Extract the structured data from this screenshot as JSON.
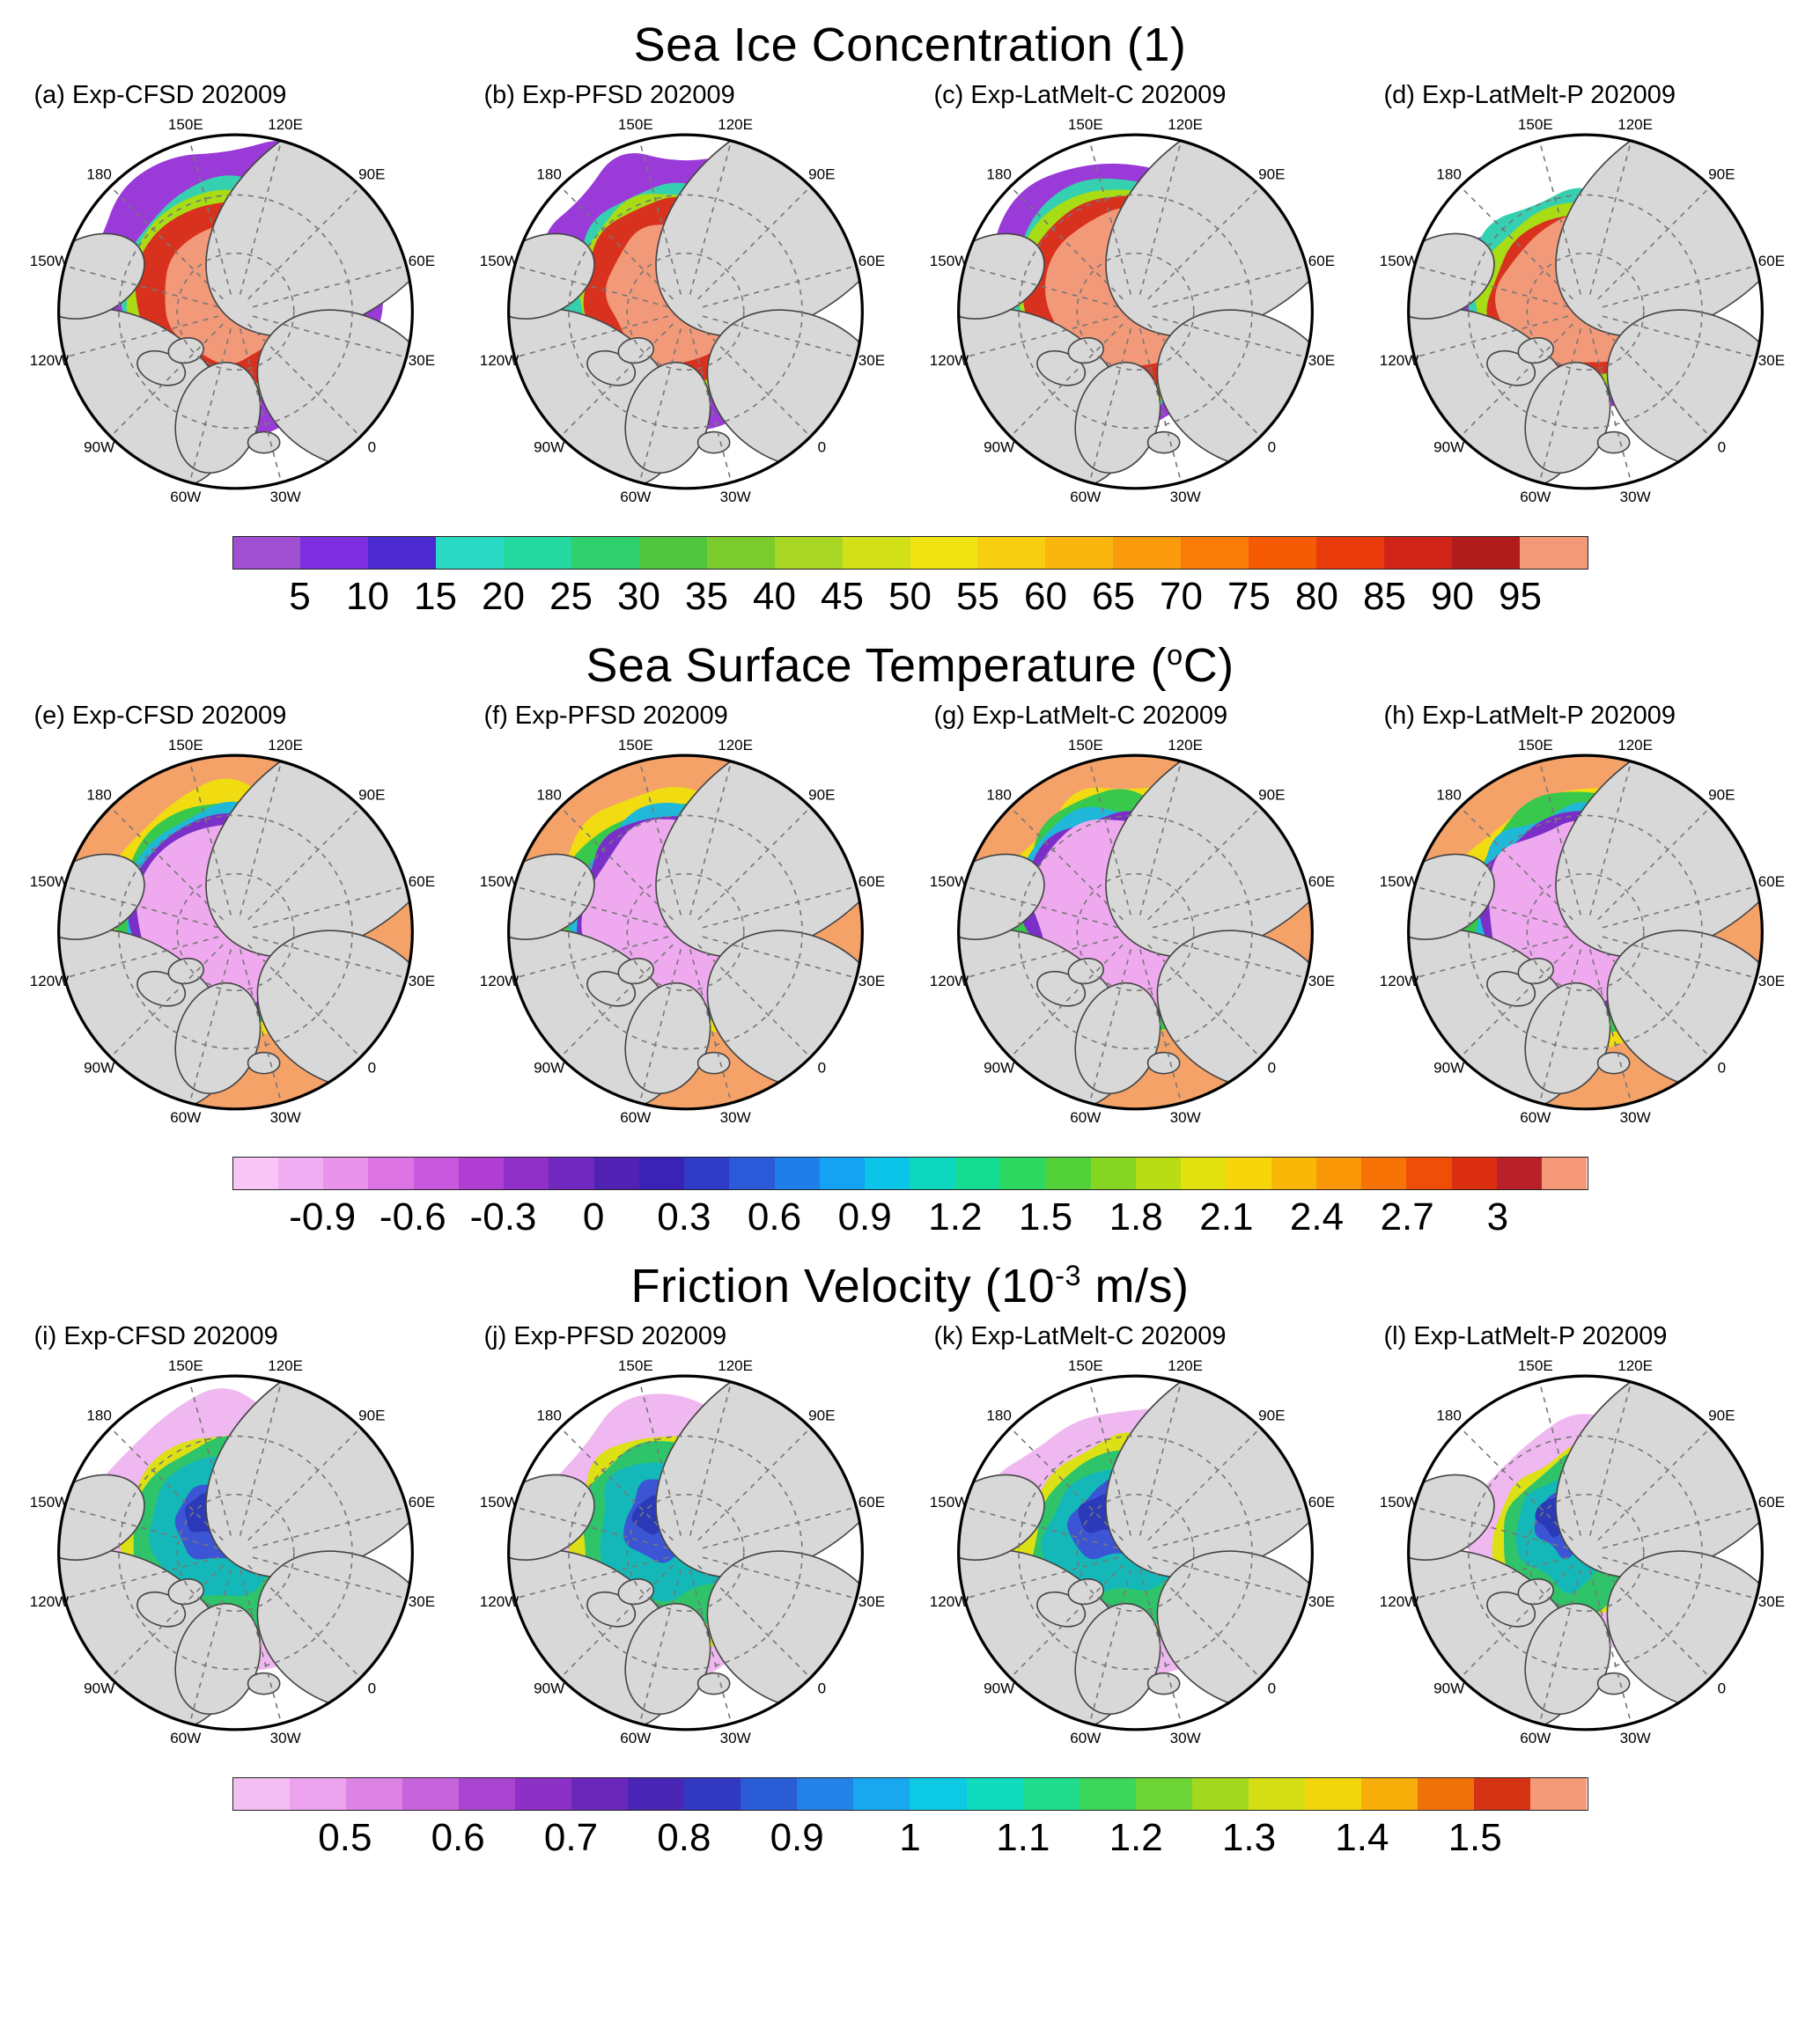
{
  "figure": {
    "background": "#ffffff",
    "land_color": "#d8d8d8",
    "graticule_color": "#777777"
  },
  "map": {
    "lon_labels": [
      {
        "text": "150E",
        "angle": 345
      },
      {
        "text": "120E",
        "angle": 15
      },
      {
        "text": "90E",
        "angle": 45
      },
      {
        "text": "60E",
        "angle": 75
      },
      {
        "text": "30E",
        "angle": 105
      },
      {
        "text": "0",
        "angle": 135
      },
      {
        "text": "30W",
        "angle": 165
      },
      {
        "text": "60W",
        "angle": 195
      },
      {
        "text": "90W",
        "angle": 225
      },
      {
        "text": "120W",
        "angle": 255
      },
      {
        "text": "150W",
        "angle": 285
      },
      {
        "text": "180",
        "angle": 315
      }
    ]
  },
  "sections": [
    {
      "id": "sea-ice-concentration",
      "title": {
        "prefix": "Sea Ice Concentration (1)",
        "sup": "",
        "suffix": ""
      },
      "panels": [
        {
          "label": "(a) Exp-CFSD 202009"
        },
        {
          "label": "(b) Exp-PFSD 202009"
        },
        {
          "label": "(c) Exp-LatMelt-C 202009"
        },
        {
          "label": "(d) Exp-LatMelt-P 202009"
        }
      ],
      "colorbar": {
        "ticks": [
          "5",
          "10",
          "15",
          "20",
          "25",
          "30",
          "35",
          "40",
          "45",
          "50",
          "55",
          "60",
          "65",
          "70",
          "75",
          "80",
          "85",
          "90",
          "95"
        ],
        "colors": [
          "#a14fd1",
          "#7d2fe0",
          "#4b2bd0",
          "#2ad9c3",
          "#25d8a0",
          "#2fcf6e",
          "#4fc63d",
          "#7ccb2d",
          "#a8d622",
          "#d2e01a",
          "#f0e312",
          "#f7cf10",
          "#fab60d",
          "#fb9a0a",
          "#f97c07",
          "#f55a05",
          "#e93a0c",
          "#d02418",
          "#b01c1c",
          "#f2997a"
        ]
      }
    },
    {
      "id": "sea-surface-temperature",
      "title": {
        "prefix": "Sea Surface Temperature (",
        "sup": "o",
        "suffix": "C)"
      },
      "panels": [
        {
          "label": "(e) Exp-CFSD 202009"
        },
        {
          "label": "(f) Exp-PFSD 202009"
        },
        {
          "label": "(g) Exp-LatMelt-C 202009"
        },
        {
          "label": "(h) Exp-LatMelt-P 202009"
        }
      ],
      "colorbar": {
        "ticks": [
          "-0.9",
          "-0.6",
          "-0.3",
          "0",
          "0.3",
          "0.6",
          "0.9",
          "1.2",
          "1.5",
          "1.8",
          "2.1",
          "2.4",
          "2.7",
          "3"
        ],
        "colors": [
          "#f7c6f7",
          "#f2aef2",
          "#ea93ea",
          "#dd74e4",
          "#c958dd",
          "#b13ed3",
          "#9030c8",
          "#7028be",
          "#5022b4",
          "#3a22b4",
          "#2f3ac6",
          "#2a5ad8",
          "#1f7ee8",
          "#14a2f2",
          "#0cc4e8",
          "#0cd8c0",
          "#16dc92",
          "#2cd860",
          "#52d238",
          "#86d522",
          "#b8dd14",
          "#e2e30e",
          "#f6d60a",
          "#f9b808",
          "#f99706",
          "#f77305",
          "#ef4e08",
          "#dc2f12",
          "#b8202a",
          "#f59878"
        ]
      }
    },
    {
      "id": "friction-velocity",
      "title": {
        "prefix": "Friction Velocity (10",
        "sup": "-3",
        "suffix": " m/s)"
      },
      "panels": [
        {
          "label": "(i) Exp-CFSD 202009"
        },
        {
          "label": "(j) Exp-PFSD 202009"
        },
        {
          "label": "(k) Exp-LatMelt-C 202009"
        },
        {
          "label": "(l) Exp-LatMelt-P 202009"
        }
      ],
      "colorbar": {
        "ticks": [
          "0.5",
          "0.6",
          "0.7",
          "0.8",
          "0.9",
          "1",
          "1.1",
          "1.2",
          "1.3",
          "1.4",
          "1.5"
        ],
        "colors": [
          "#f3bff3",
          "#eba3ee",
          "#de83e6",
          "#c763db",
          "#a945d1",
          "#8c30c6",
          "#6a28bb",
          "#4a26b6",
          "#3138c2",
          "#2a5cd6",
          "#2382e8",
          "#18a8f0",
          "#0ccae4",
          "#0edcbc",
          "#20dc8c",
          "#3cd65c",
          "#6cd434",
          "#a2d91e",
          "#d4de12",
          "#f2d60c",
          "#f7ae08",
          "#f0700a",
          "#d43414",
          "#f59a78"
        ]
      }
    }
  ]
}
